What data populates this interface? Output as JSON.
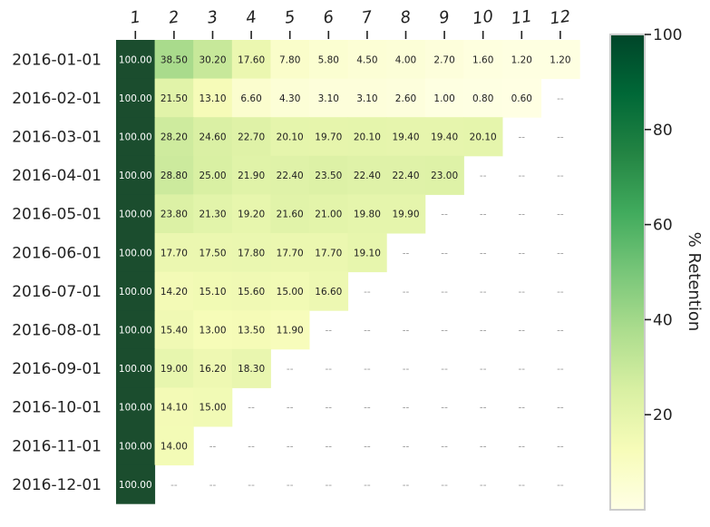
{
  "chart_data": {
    "type": "heatmap",
    "title": "",
    "xlabel": "",
    "ylabel": "",
    "x_labels": [
      "1",
      "2",
      "3",
      "4",
      "5",
      "6",
      "7",
      "8",
      "9",
      "10",
      "11",
      "12"
    ],
    "y_labels": [
      "2016-01-01",
      "2016-02-01",
      "2016-03-01",
      "2016-04-01",
      "2016-05-01",
      "2016-06-01",
      "2016-07-01",
      "2016-08-01",
      "2016-09-01",
      "2016-10-01",
      "2016-11-01",
      "2016-12-01"
    ],
    "cells": [
      [
        "100.00",
        "38.50",
        "30.20",
        "17.60",
        "7.80",
        "5.80",
        "4.50",
        "4.00",
        "2.70",
        "1.60",
        "1.20",
        "1.20"
      ],
      [
        "100.00",
        "21.50",
        "13.10",
        "6.60",
        "4.30",
        "3.10",
        "3.10",
        "2.60",
        "1.00",
        "0.80",
        "0.60",
        "--"
      ],
      [
        "100.00",
        "28.20",
        "24.60",
        "22.70",
        "20.10",
        "19.70",
        "20.10",
        "19.40",
        "19.40",
        "20.10",
        "--",
        "--"
      ],
      [
        "100.00",
        "28.80",
        "25.00",
        "21.90",
        "22.40",
        "23.50",
        "22.40",
        "22.40",
        "23.00",
        "--",
        "--",
        "--"
      ],
      [
        "100.00",
        "23.80",
        "21.30",
        "19.20",
        "21.60",
        "21.00",
        "19.80",
        "19.90",
        "--",
        "--",
        "--",
        "--"
      ],
      [
        "100.00",
        "17.70",
        "17.50",
        "17.80",
        "17.70",
        "17.70",
        "19.10",
        "--",
        "--",
        "--",
        "--",
        "--"
      ],
      [
        "100.00",
        "14.20",
        "15.10",
        "15.60",
        "15.00",
        "16.60",
        "--",
        "--",
        "--",
        "--",
        "--",
        "--"
      ],
      [
        "100.00",
        "15.40",
        "13.00",
        "13.50",
        "11.90",
        "--",
        "--",
        "--",
        "--",
        "--",
        "--",
        "--"
      ],
      [
        "100.00",
        "19.00",
        "16.20",
        "18.30",
        "--",
        "--",
        "--",
        "--",
        "--",
        "--",
        "--",
        "--"
      ],
      [
        "100.00",
        "14.10",
        "15.00",
        "--",
        "--",
        "--",
        "--",
        "--",
        "--",
        "--",
        "--",
        "--"
      ],
      [
        "100.00",
        "14.00",
        "--",
        "--",
        "--",
        "--",
        "--",
        "--",
        "--",
        "--",
        "--",
        "--"
      ],
      [
        "100.00",
        "--",
        "--",
        "--",
        "--",
        "--",
        "--",
        "--",
        "--",
        "--",
        "--",
        "--"
      ]
    ],
    "missing_marker": "--",
    "colorbar": {
      "label": "% Retention",
      "min": 0,
      "max": 100,
      "ticks": [
        20,
        40,
        60,
        80,
        100
      ],
      "tick_labels": [
        "20",
        "40",
        "60",
        "80",
        "100"
      ]
    },
    "colorscale": [
      [
        0.0,
        "#ffffe5"
      ],
      [
        0.125,
        "#f7fcb9"
      ],
      [
        0.25,
        "#d9f0a3"
      ],
      [
        0.375,
        "#addd8e"
      ],
      [
        0.5,
        "#78c679"
      ],
      [
        0.625,
        "#41ab5d"
      ],
      [
        0.75,
        "#238443"
      ],
      [
        0.875,
        "#006837"
      ],
      [
        1.0,
        "#004529"
      ]
    ],
    "colors": {
      "max_cell": "#1b4d2e",
      "max_cell_text": "#ffffff",
      "text": "#222222",
      "missing_text": "#999999"
    },
    "grid": false,
    "legend": "right"
  }
}
